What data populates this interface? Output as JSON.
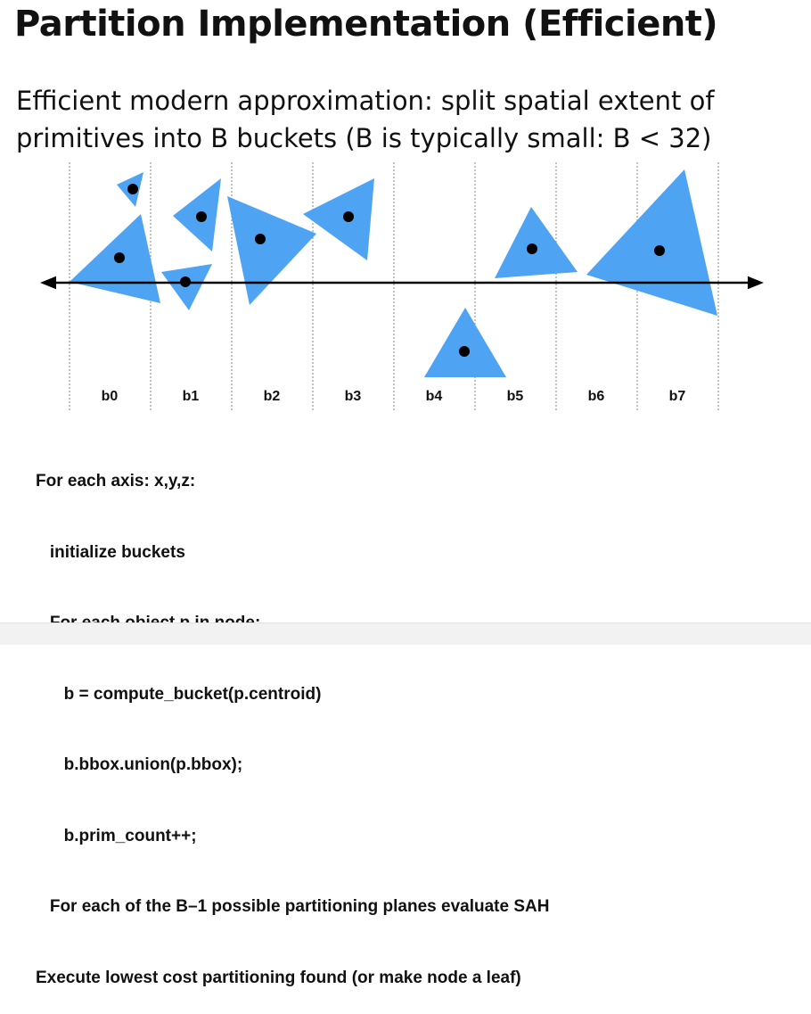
{
  "title": "Partition Implementation (Efficient)",
  "subtitle": {
    "line1": "Efficient modern approximation: split spatial extent of",
    "line2": "primitives into B buckets (B is typically small: B < 32)"
  },
  "diagram": {
    "buckets": [
      "b0",
      "b1",
      "b2",
      "b3",
      "b4",
      "b5",
      "b6",
      "b7"
    ],
    "triangle_color": "#4ea3f2",
    "centroid_color": "#000000",
    "divider_color": "#9a9a9a"
  },
  "pseudocode": [
    "For each axis: x,y,z:",
    "   initialize buckets",
    "   For each object p in node:",
    "      b = compute_bucket(p.centroid)",
    "      b.bbox.union(p.bbox);",
    "      b.prim_count++;",
    "   For each of the B–1 possible partitioning planes evaluate SAH",
    "Execute lowest cost partitioning found (or make node a leaf)"
  ]
}
